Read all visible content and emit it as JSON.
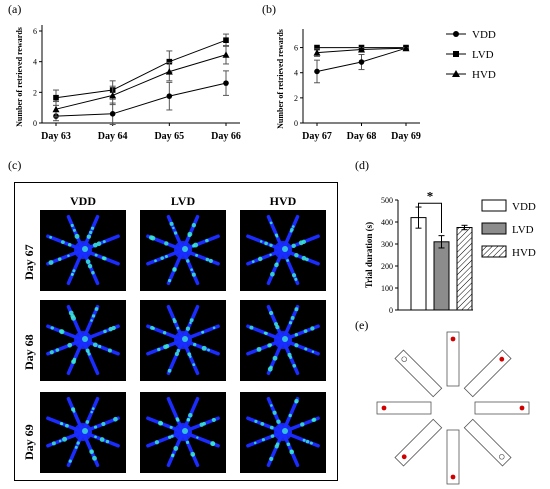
{
  "panels": {
    "a": "(a)",
    "b": "(b)",
    "c": "(c)",
    "d": "(d)",
    "e": "(e)"
  },
  "chart_data": [
    {
      "id": "a",
      "type": "line",
      "ylabel": "Number of retrieved rewards",
      "categories": [
        "Day 63",
        "Day 64",
        "Day 65",
        "Day 66"
      ],
      "yticks": [
        0,
        2,
        4,
        6
      ],
      "ylim": [
        0,
        6
      ],
      "series": [
        {
          "name": "VDD",
          "marker": "circle",
          "values": [
            0.45,
            0.6,
            1.75,
            2.6
          ],
          "err": [
            0.3,
            0.7,
            0.9,
            0.8
          ]
        },
        {
          "name": "LVD",
          "marker": "square",
          "values": [
            1.65,
            2.15,
            4.0,
            5.4
          ],
          "err": [
            0.5,
            0.6,
            0.7,
            0.4
          ]
        },
        {
          "name": "HVD",
          "marker": "triangle",
          "values": [
            0.9,
            1.8,
            3.35,
            4.45
          ],
          "err": [
            0.5,
            0.6,
            0.6,
            0.6
          ]
        }
      ]
    },
    {
      "id": "b",
      "type": "line",
      "ylabel": "Number of retrieved rewards",
      "categories": [
        "Day 67",
        "Day 68",
        "Day 69"
      ],
      "yticks": [
        0,
        2,
        4,
        6
      ],
      "ylim": [
        0,
        7
      ],
      "series": [
        {
          "name": "VDD",
          "marker": "circle",
          "values": [
            4.1,
            4.85,
            5.95
          ],
          "err": [
            0.9,
            0.6,
            0.1
          ]
        },
        {
          "name": "LVD",
          "marker": "square",
          "values": [
            6.0,
            6.0,
            6.0
          ],
          "err": [
            0,
            0,
            0
          ]
        },
        {
          "name": "HVD",
          "marker": "triangle",
          "values": [
            5.6,
            5.85,
            5.95
          ],
          "err": [
            0.3,
            0.15,
            0.05
          ]
        }
      ]
    },
    {
      "id": "d",
      "type": "bar",
      "ylabel": "Trial duration (s)",
      "categories": [
        "VDD",
        "LVD",
        "HVD"
      ],
      "values": [
        420,
        310,
        375
      ],
      "err": [
        48,
        28,
        10
      ],
      "yticks": [
        0,
        100,
        200,
        300,
        400,
        500
      ],
      "ylim": [
        0,
        500
      ],
      "significance": "*"
    }
  ],
  "legend_ab": [
    "VDD",
    "LVD",
    "HVD"
  ],
  "legend_d": [
    "VDD",
    "LVD",
    "HVD"
  ],
  "heatmaps": {
    "columns": [
      "VDD",
      "LVD",
      "HVD"
    ],
    "rows": [
      "Day 67",
      "Day 68",
      "Day 69"
    ]
  },
  "colors": {
    "heat_bg": "#000000",
    "arm": "#1a2cff",
    "hot": "#39e6d2",
    "bar_lvd": "#8c8c8c",
    "dot": "#d00000"
  }
}
